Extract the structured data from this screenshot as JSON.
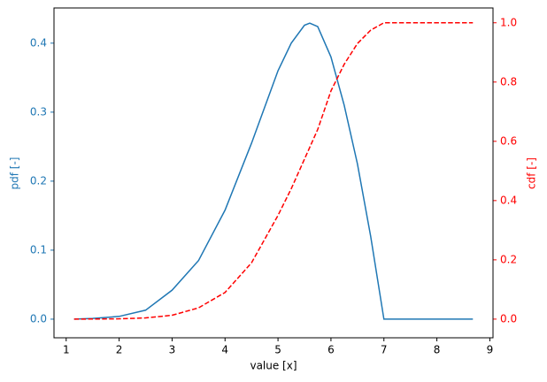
{
  "chart_data": {
    "type": "line",
    "xlabel": "value [x]",
    "ylabel": "pdf [-]",
    "y2label": "cdf [-]",
    "x": [
      1.15,
      1.5,
      2,
      2.5,
      3,
      3.5,
      4,
      4.5,
      5,
      5.25,
      5.5,
      5.6,
      5.75,
      6,
      6.25,
      6.5,
      6.75,
      7,
      7.5,
      8,
      8.68
    ],
    "series": [
      {
        "name": "pdf",
        "color": "#1f77b4",
        "values": [
          0,
          0.001,
          0.004,
          0.013,
          0.042,
          0.085,
          0.158,
          0.255,
          0.36,
          0.4,
          0.426,
          0.429,
          0.424,
          0.38,
          0.31,
          0.225,
          0.12,
          0,
          0,
          0,
          0
        ]
      },
      {
        "name": "cdf",
        "color": "#ff0000",
        "axis": "y2",
        "dashed": true,
        "values": [
          0,
          0.0003,
          0.001,
          0.004,
          0.013,
          0.038,
          0.09,
          0.19,
          0.35,
          0.44,
          0.54,
          0.58,
          0.64,
          0.77,
          0.86,
          0.93,
          0.975,
          1.0,
          1.0,
          1.0,
          1.0
        ]
      }
    ],
    "xlim": [
      0.77,
      9.06
    ],
    "xticks": [
      1,
      2,
      3,
      4,
      5,
      6,
      7,
      8,
      9
    ],
    "ylim": [
      -0.027,
      0.451
    ],
    "yticks": [
      {
        "value": 0,
        "label": "0.0"
      },
      0.1,
      0.2,
      0.3,
      0.4
    ],
    "y2lim": [
      -0.063,
      1.05
    ],
    "y2ticks": [
      {
        "value": 0,
        "label": "0.0"
      },
      0.2,
      0.4,
      0.6,
      0.8,
      {
        "value": 1,
        "label": "1.0"
      }
    ]
  }
}
